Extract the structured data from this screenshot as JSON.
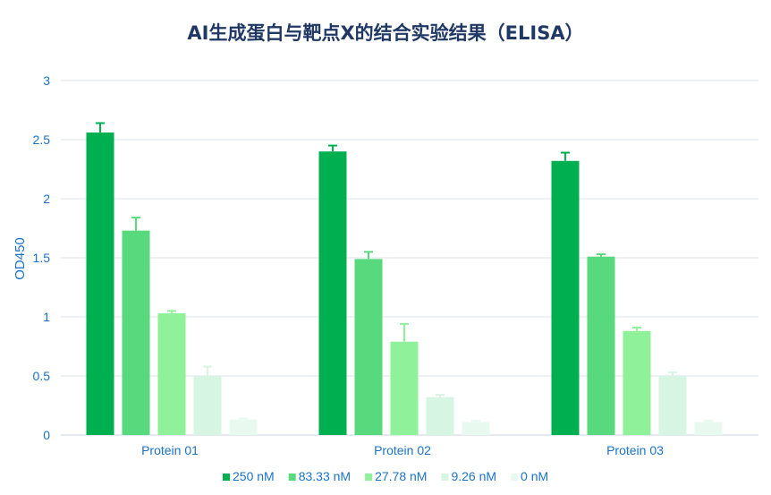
{
  "chart_data": {
    "type": "bar",
    "title": "AI生成蛋白与靶点X的结合实验结果（ELISA）",
    "xlabel": "",
    "ylabel": "OD450",
    "ylim": [
      0,
      3
    ],
    "yticks": [
      "0",
      "0.5",
      "1",
      "1.5",
      "2",
      "2.5",
      "3"
    ],
    "grid": true,
    "legend_position": "bottom",
    "categories": [
      "Protein 01",
      "Protein 02",
      "Protein 03"
    ],
    "series": [
      {
        "name": "250 nM",
        "color": "#00b050",
        "values": [
          2.56,
          2.4,
          2.32
        ],
        "errors": [
          0.08,
          0.05,
          0.07
        ]
      },
      {
        "name": "83.33 nM",
        "color": "#59d97e",
        "values": [
          1.73,
          1.49,
          1.51
        ],
        "errors": [
          0.11,
          0.06,
          0.02
        ]
      },
      {
        "name": "27.78 nM",
        "color": "#8ff29a",
        "values": [
          1.03,
          0.79,
          0.88
        ],
        "errors": [
          0.02,
          0.15,
          0.03
        ]
      },
      {
        "name": "9.26 nM",
        "color": "#d6f5e2",
        "values": [
          0.5,
          0.32,
          0.5
        ],
        "errors": [
          0.08,
          0.02,
          0.03
        ]
      },
      {
        "name": "0 nM",
        "color": "#e8faf0",
        "values": [
          0.13,
          0.11,
          0.11
        ],
        "errors": [
          0.01,
          0.01,
          0.01
        ]
      }
    ]
  }
}
